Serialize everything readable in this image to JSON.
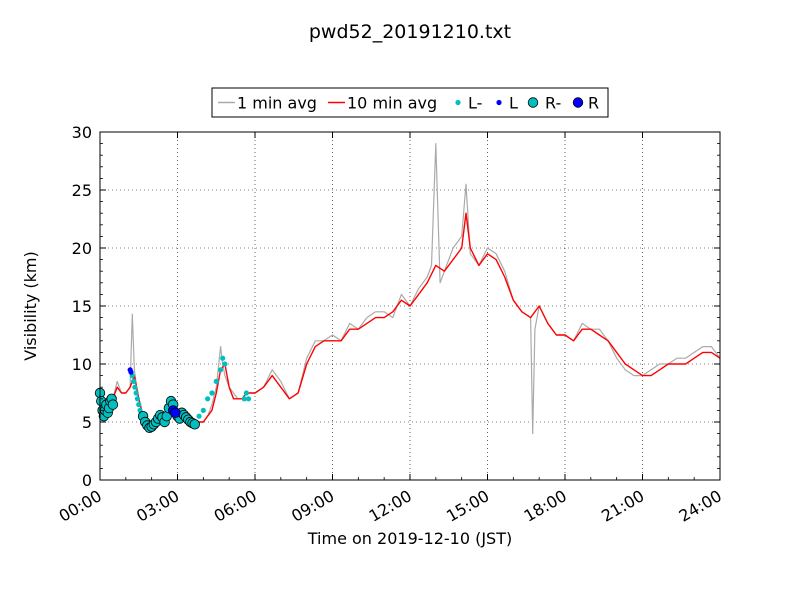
{
  "chart_data": {
    "type": "line",
    "title": "pwd52_20191210.txt",
    "xlabel": "Time on 2019-12-10 (JST)",
    "ylabel": "Visibility (km)",
    "xlim": [
      "00:00",
      "24:00"
    ],
    "ylim": [
      0,
      30
    ],
    "x_ticks": [
      "00:00",
      "03:00",
      "06:00",
      "09:00",
      "12:00",
      "15:00",
      "18:00",
      "21:00",
      "24:00"
    ],
    "y_ticks": [
      "0",
      "5",
      "10",
      "15",
      "20",
      "25",
      "30"
    ],
    "grid": true,
    "legend_position": "top-center",
    "colors": {
      "one_min": "#aaaaaa",
      "ten_min": "#ff0000",
      "L_minus": "#00bfbf",
      "L": "#0000ff",
      "R_minus": "#00bfbf",
      "R": "#0000ff"
    },
    "series": [
      {
        "name": "1 min avg",
        "x": [
          "00:00",
          "00:10",
          "00:20",
          "00:30",
          "00:40",
          "00:50",
          "01:00",
          "01:10",
          "01:15",
          "01:20",
          "01:25",
          "01:30",
          "01:40",
          "01:50",
          "02:00",
          "02:10",
          "02:20",
          "02:30",
          "02:40",
          "02:50",
          "03:00",
          "03:10",
          "03:20",
          "03:30",
          "03:40",
          "03:50",
          "04:00",
          "04:10",
          "04:20",
          "04:30",
          "04:40",
          "04:45",
          "04:50",
          "05:00",
          "05:10",
          "05:20",
          "05:30",
          "05:40",
          "05:50",
          "06:00",
          "06:20",
          "06:40",
          "07:00",
          "07:20",
          "07:40",
          "08:00",
          "08:20",
          "08:40",
          "09:00",
          "09:20",
          "09:40",
          "10:00",
          "10:20",
          "10:40",
          "11:00",
          "11:20",
          "11:40",
          "12:00",
          "12:20",
          "12:40",
          "12:50",
          "13:00",
          "13:10",
          "13:20",
          "13:40",
          "14:00",
          "14:10",
          "14:20",
          "14:40",
          "15:00",
          "15:20",
          "15:40",
          "16:00",
          "16:20",
          "16:40",
          "16:45",
          "16:50",
          "17:00",
          "17:20",
          "17:40",
          "18:00",
          "18:20",
          "18:40",
          "19:00",
          "19:20",
          "19:40",
          "20:00",
          "20:20",
          "20:40",
          "21:00",
          "21:20",
          "21:40",
          "22:00",
          "22:20",
          "22:40",
          "23:00",
          "23:20",
          "23:40",
          "24:00"
        ],
        "values": [
          7.0,
          6.0,
          6.5,
          7.0,
          8.5,
          7.5,
          7.5,
          8.0,
          14.3,
          9.5,
          8.0,
          7.0,
          5.5,
          5.0,
          5.0,
          5.2,
          5.5,
          5.5,
          6.5,
          6.0,
          6.0,
          5.5,
          5.5,
          5.5,
          5.0,
          5.0,
          5.0,
          5.5,
          6.5,
          8.0,
          11.5,
          10.0,
          9.0,
          8.0,
          7.5,
          7.0,
          7.0,
          7.5,
          7.5,
          7.5,
          8.0,
          9.5,
          8.5,
          7.0,
          7.5,
          10.5,
          12.0,
          12.0,
          12.5,
          12.0,
          13.5,
          13.0,
          14.0,
          14.5,
          14.5,
          14.0,
          16.0,
          15.0,
          16.5,
          17.5,
          18.5,
          29.0,
          17.0,
          18.0,
          20.0,
          21.0,
          25.5,
          19.5,
          18.5,
          20.0,
          19.5,
          18.0,
          15.5,
          14.5,
          14.0,
          4.0,
          13.0,
          15.0,
          13.5,
          12.5,
          12.5,
          12.0,
          13.5,
          13.0,
          13.0,
          12.0,
          10.5,
          9.5,
          9.0,
          9.0,
          9.5,
          10.0,
          10.0,
          10.5,
          10.5,
          11.0,
          11.5,
          11.5,
          10.5
        ]
      },
      {
        "name": "10 min avg",
        "x": [
          "00:00",
          "00:10",
          "00:20",
          "00:30",
          "00:40",
          "00:50",
          "01:00",
          "01:10",
          "01:20",
          "01:30",
          "01:40",
          "01:50",
          "02:00",
          "02:10",
          "02:20",
          "02:30",
          "02:40",
          "02:50",
          "03:00",
          "03:10",
          "03:20",
          "03:30",
          "03:40",
          "03:50",
          "04:00",
          "04:10",
          "04:20",
          "04:30",
          "04:40",
          "04:50",
          "05:00",
          "05:10",
          "05:20",
          "05:30",
          "05:40",
          "05:50",
          "06:00",
          "06:20",
          "06:40",
          "07:00",
          "07:20",
          "07:40",
          "08:00",
          "08:20",
          "08:40",
          "09:00",
          "09:20",
          "09:40",
          "10:00",
          "10:20",
          "10:40",
          "11:00",
          "11:20",
          "11:40",
          "12:00",
          "12:20",
          "12:40",
          "13:00",
          "13:20",
          "13:40",
          "14:00",
          "14:10",
          "14:20",
          "14:40",
          "15:00",
          "15:20",
          "15:40",
          "16:00",
          "16:20",
          "16:40",
          "17:00",
          "17:20",
          "17:40",
          "18:00",
          "18:20",
          "18:40",
          "19:00",
          "19:20",
          "19:40",
          "20:00",
          "20:20",
          "20:40",
          "21:00",
          "21:20",
          "21:40",
          "22:00",
          "22:20",
          "22:40",
          "23:00",
          "23:20",
          "23:40",
          "24:00"
        ],
        "values": [
          6.5,
          6.5,
          6.5,
          7.0,
          8.0,
          7.5,
          7.5,
          8.0,
          9.0,
          7.0,
          5.5,
          5.0,
          5.0,
          5.0,
          5.2,
          5.5,
          6.0,
          6.0,
          6.0,
          5.5,
          5.5,
          5.5,
          5.0,
          5.0,
          5.0,
          5.5,
          6.0,
          7.5,
          9.5,
          10.0,
          8.0,
          7.0,
          7.0,
          7.0,
          7.5,
          7.5,
          7.5,
          8.0,
          9.0,
          8.0,
          7.0,
          7.5,
          10.0,
          11.5,
          12.0,
          12.0,
          12.0,
          13.0,
          13.0,
          13.5,
          14.0,
          14.0,
          14.5,
          15.5,
          15.0,
          16.0,
          17.0,
          18.5,
          18.0,
          19.0,
          20.0,
          23.0,
          20.0,
          18.5,
          19.5,
          19.0,
          17.5,
          15.5,
          14.5,
          14.0,
          15.0,
          13.5,
          12.5,
          12.5,
          12.0,
          13.0,
          13.0,
          12.5,
          12.0,
          11.0,
          10.0,
          9.5,
          9.0,
          9.0,
          9.5,
          10.0,
          10.0,
          10.0,
          10.5,
          11.0,
          11.0,
          10.5
        ]
      },
      {
        "name": "L-",
        "x": [
          "01:15",
          "01:18",
          "01:21",
          "01:24",
          "01:27",
          "01:30",
          "01:33",
          "01:36",
          "03:40",
          "03:50",
          "04:00",
          "04:10",
          "04:20",
          "04:30",
          "04:40",
          "04:45",
          "04:50",
          "05:35",
          "05:40",
          "05:45"
        ],
        "values": [
          9.0,
          8.5,
          8.0,
          7.5,
          7.0,
          6.5,
          6.0,
          5.5,
          5.0,
          5.5,
          6.0,
          7.0,
          7.5,
          8.5,
          9.5,
          10.5,
          10.0,
          7.0,
          7.5,
          7.0
        ]
      },
      {
        "name": "L",
        "x": [
          "01:10",
          "01:12",
          "02:48",
          "02:52"
        ],
        "values": [
          9.5,
          9.3,
          6.0,
          5.8
        ]
      },
      {
        "name": "R-",
        "x": [
          "00:00",
          "00:03",
          "00:06",
          "00:09",
          "00:12",
          "00:15",
          "00:18",
          "00:21",
          "00:24",
          "00:27",
          "00:30",
          "01:40",
          "01:45",
          "01:50",
          "01:55",
          "02:00",
          "02:05",
          "02:10",
          "02:15",
          "02:20",
          "02:25",
          "02:30",
          "02:35",
          "02:40",
          "02:45",
          "02:50",
          "02:55",
          "03:00",
          "03:05",
          "03:10",
          "03:15",
          "03:20",
          "03:25",
          "03:30",
          "03:35",
          "03:40"
        ],
        "values": [
          7.5,
          6.8,
          6.0,
          5.5,
          6.0,
          6.5,
          5.8,
          6.2,
          6.8,
          7.0,
          6.5,
          5.5,
          5.0,
          4.7,
          4.5,
          4.6,
          4.8,
          5.0,
          5.3,
          5.6,
          5.4,
          5.0,
          5.5,
          6.2,
          6.8,
          6.5,
          5.8,
          5.5,
          5.3,
          5.8,
          5.6,
          5.4,
          5.2,
          5.0,
          4.9,
          4.8
        ]
      },
      {
        "name": "R",
        "x": [
          "02:50",
          "02:55"
        ],
        "values": [
          6.0,
          5.8
        ]
      }
    ]
  }
}
